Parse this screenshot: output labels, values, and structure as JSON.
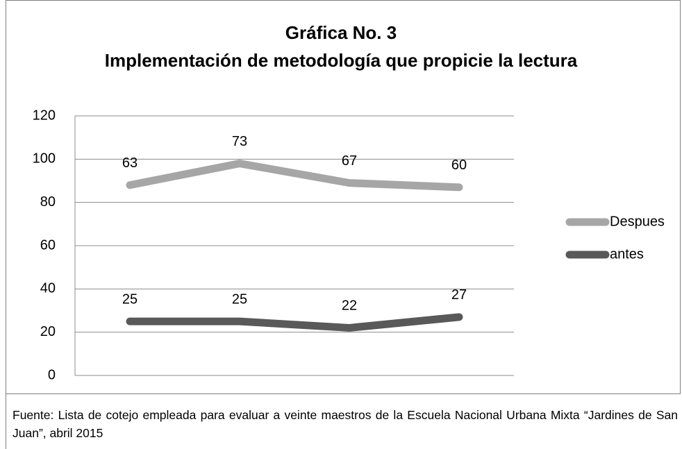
{
  "chart_data": {
    "type": "line",
    "stacked": true,
    "title": "Gráfica No. 3",
    "subtitle": "Implementación de metodología que propicie la lectura",
    "categories": [
      null,
      null,
      null,
      null
    ],
    "series": [
      {
        "name": "antes",
        "color": "#595959",
        "values": [
          25,
          25,
          22,
          27
        ]
      },
      {
        "name": "Despues",
        "color": "#a6a6a6",
        "values": [
          63,
          73,
          67,
          60
        ]
      }
    ],
    "ylim": [
      0,
      120
    ],
    "yticks": [
      0,
      20,
      40,
      60,
      80,
      100,
      120
    ],
    "grid": true,
    "legend": "right",
    "data_labels": true
  },
  "source": "Fuente: Lista de cotejo empleada para evaluar a veinte maestros de la Escuela Nacional Urbana Mixta “Jardines de San Juan”, abril 2015"
}
